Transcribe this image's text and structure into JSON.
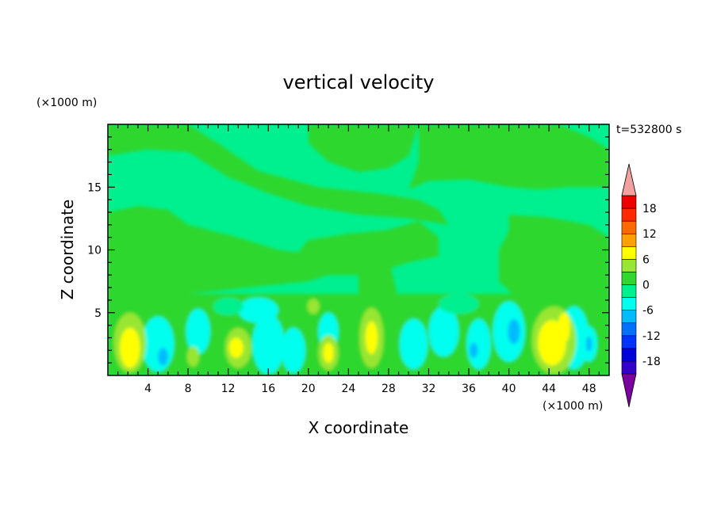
{
  "chart_data": {
    "type": "heatmap",
    "title": "vertical velocity",
    "xlabel": "X coordinate",
    "ylabel": "Z coordinate",
    "x_unit": "(×1000 m)",
    "y_unit": "(×1000 m)",
    "time_label": "t=532800 s",
    "xlim": [
      0,
      50
    ],
    "ylim": [
      0,
      20
    ],
    "x_ticks": [
      4,
      8,
      12,
      16,
      20,
      24,
      28,
      32,
      36,
      40,
      44,
      48
    ],
    "y_ticks": [
      5,
      10,
      15
    ],
    "grid": false,
    "legend": "right colorbar",
    "colorbar": {
      "levels": [
        -21,
        -18,
        -15,
        -12,
        -9,
        -6,
        -3,
        0,
        3,
        6,
        9,
        12,
        15,
        18,
        21
      ],
      "tick_labels": [
        -18,
        -12,
        -6,
        0,
        6,
        12,
        18
      ],
      "colors": [
        "#7a00a0",
        "#3300cc",
        "#0000dd",
        "#0033ff",
        "#0070ff",
        "#00bbff",
        "#00ffee",
        "#00f090",
        "#2fd72f",
        "#99e632",
        "#ffff00",
        "#ffa000",
        "#ff6a00",
        "#ff2a00",
        "#ee0000",
        "#f3a0a0"
      ]
    },
    "field_description_note": ""
  }
}
